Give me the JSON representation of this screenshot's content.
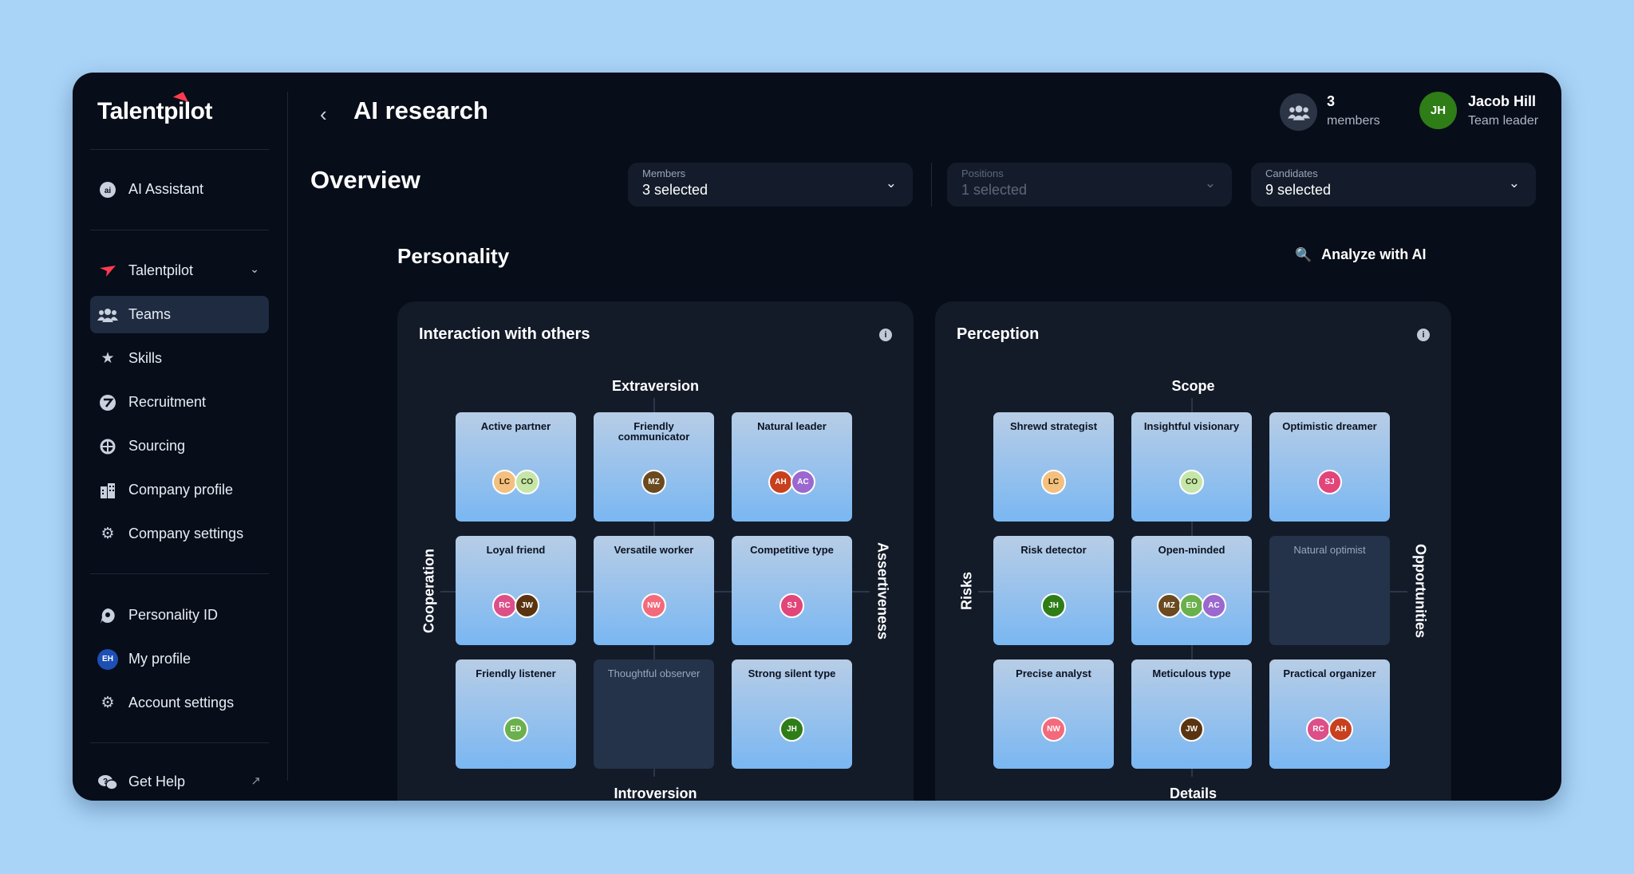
{
  "app": {
    "logo_text": "Talentpilot"
  },
  "sidebar": {
    "items": [
      {
        "key": "ai-assistant",
        "label": "AI Assistant",
        "icon": "ai-icon"
      },
      {
        "key": "talentpilot",
        "label": "Talentpilot",
        "icon": "talentpilot-logo-icon"
      },
      {
        "key": "teams",
        "label": "Teams",
        "icon": "teams-icon",
        "active": true
      },
      {
        "key": "skills",
        "label": "Skills",
        "icon": "star-icon"
      },
      {
        "key": "recruitment",
        "label": "Recruitment",
        "icon": "recruitment-icon"
      },
      {
        "key": "sourcing",
        "label": "Sourcing",
        "icon": "sourcing-icon"
      },
      {
        "key": "company-profile",
        "label": "Company profile",
        "icon": "building-icon"
      },
      {
        "key": "company-settings",
        "label": "Company settings",
        "icon": "gear-icon"
      },
      {
        "key": "personality-id",
        "label": "Personality ID",
        "icon": "personality-icon"
      },
      {
        "key": "my-profile",
        "label": "My profile",
        "icon": "avatar-icon",
        "avatar_initials": "EH"
      },
      {
        "key": "account-settings",
        "label": "Account settings",
        "icon": "gear-icon"
      },
      {
        "key": "get-help",
        "label": "Get Help",
        "icon": "help-chat-icon"
      }
    ]
  },
  "header": {
    "title": "AI research",
    "members_count": "3",
    "members_label": "members",
    "leader": {
      "initials": "JH",
      "name": "Jacob Hill",
      "role": "Team leader",
      "color": "#2e7d17"
    }
  },
  "overview": {
    "title": "Overview",
    "filters": [
      {
        "label": "Members",
        "value": "3 selected"
      },
      {
        "label": "Positions",
        "value": "1 selected"
      },
      {
        "label": "Candidates",
        "value": "9 selected"
      }
    ]
  },
  "personality": {
    "title": "Personality",
    "analyze_label": "Analyze with AI",
    "panels": [
      {
        "title": "Interaction with others",
        "axis_top": "Extraversion",
        "axis_bottom": "Introversion",
        "axis_left": "Cooperation",
        "axis_right": "Assertiveness",
        "cells": [
          {
            "name": "Active partner",
            "members": [
              "LC",
              "CO"
            ]
          },
          {
            "name": "Friendly communicator",
            "members": [
              "MZ"
            ]
          },
          {
            "name": "Natural leader",
            "members": [
              "AH",
              "AC"
            ]
          },
          {
            "name": "Loyal friend",
            "members": [
              "RC",
              "JW"
            ]
          },
          {
            "name": "Versatile worker",
            "members": [
              "NW"
            ]
          },
          {
            "name": "Competitive type",
            "members": [
              "SJ"
            ]
          },
          {
            "name": "Friendly listener",
            "members": [
              "ED"
            ]
          },
          {
            "name": "Thoughtful observer",
            "members": []
          },
          {
            "name": "Strong silent type",
            "members": [
              "JH"
            ]
          }
        ]
      },
      {
        "title": "Perception",
        "axis_top": "Scope",
        "axis_bottom": "Details",
        "axis_left": "Risks",
        "axis_right": "Opportunities",
        "cells": [
          {
            "name": "Shrewd strategist",
            "members": [
              "LC"
            ]
          },
          {
            "name": "Insightful visionary",
            "members": [
              "CO"
            ]
          },
          {
            "name": "Optimistic dreamer",
            "members": [
              "SJ"
            ]
          },
          {
            "name": "Risk detector",
            "members": [
              "JH"
            ]
          },
          {
            "name": "Open-minded",
            "members": [
              "MZ",
              "ED",
              "AC"
            ]
          },
          {
            "name": "Natural optimist",
            "members": []
          },
          {
            "name": "Precise analyst",
            "members": [
              "NW"
            ]
          },
          {
            "name": "Meticulous type",
            "members": [
              "JW"
            ]
          },
          {
            "name": "Practical organizer",
            "members": [
              "RC",
              "AH"
            ]
          }
        ]
      }
    ]
  },
  "member_colors": {
    "LC": {
      "bg": "#f3c07f",
      "fg": "#3a2508"
    },
    "CO": {
      "bg": "#c6e6a8",
      "fg": "#2a3a18"
    },
    "MZ": {
      "bg": "#6b4a1f",
      "fg": "#ffffff"
    },
    "AH": {
      "bg": "#c8401e",
      "fg": "#ffffff"
    },
    "AC": {
      "bg": "#9b68cf",
      "fg": "#ffffff"
    },
    "RC": {
      "bg": "#dd4f88",
      "fg": "#ffffff"
    },
    "JW": {
      "bg": "#5a3410",
      "fg": "#ffffff"
    },
    "NW": {
      "bg": "#f36a7c",
      "fg": "#ffffff"
    },
    "SJ": {
      "bg": "#e2457a",
      "fg": "#ffffff"
    },
    "ED": {
      "bg": "#6ab04c",
      "fg": "#ffffff"
    },
    "JH": {
      "bg": "#2e7d17",
      "fg": "#ffffff"
    }
  }
}
